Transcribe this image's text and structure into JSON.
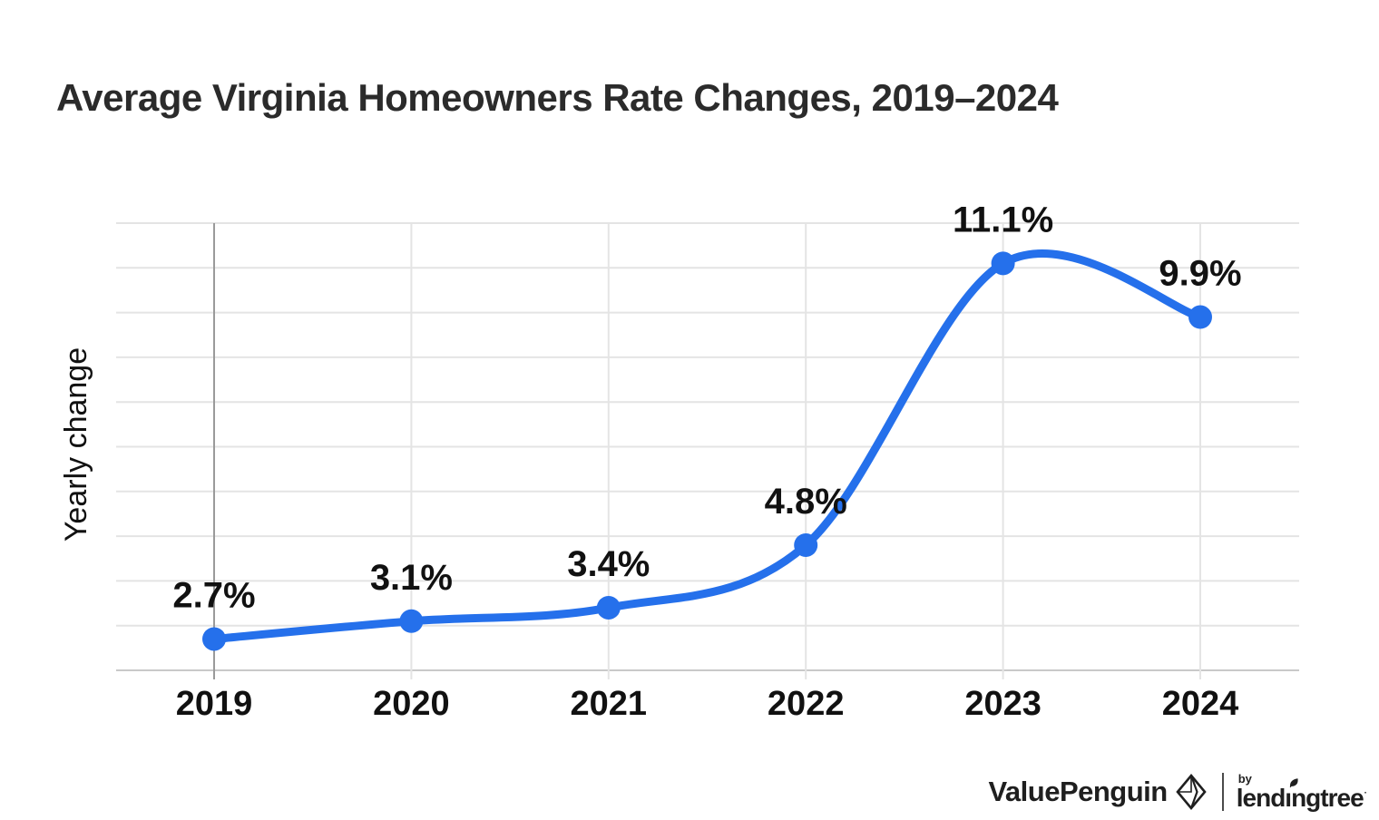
{
  "header": {
    "title": "Average Virginia Homeowners Rate Changes, 2019–2024"
  },
  "chart_data": {
    "type": "line",
    "categories": [
      "2019",
      "2020",
      "2021",
      "2022",
      "2023",
      "2024"
    ],
    "values": [
      2.7,
      3.1,
      3.4,
      4.8,
      11.1,
      9.9
    ],
    "point_labels": [
      "2.7%",
      "3.1%",
      "3.4%",
      "4.8%",
      "11.1%",
      "9.9%"
    ],
    "xlabel": "",
    "ylabel": "Yearly change",
    "ylim": [
      2,
      12
    ],
    "grid": true,
    "gridline_step": 1,
    "legend_position": "none",
    "line_color": "#2570eb",
    "marker_color": "#2570eb",
    "grid_color": "#e4e4e4",
    "first_axis_line_color": "#9a9a9a",
    "baseline_color": "#c9c9c9",
    "text_color": "#111111"
  },
  "footer": {
    "brand": "ValuePenguin",
    "by_label": "by",
    "partner_part1": "lend",
    "partner_part2": "ı",
    "partner_part3": "ngtree",
    "trademark": "·"
  }
}
